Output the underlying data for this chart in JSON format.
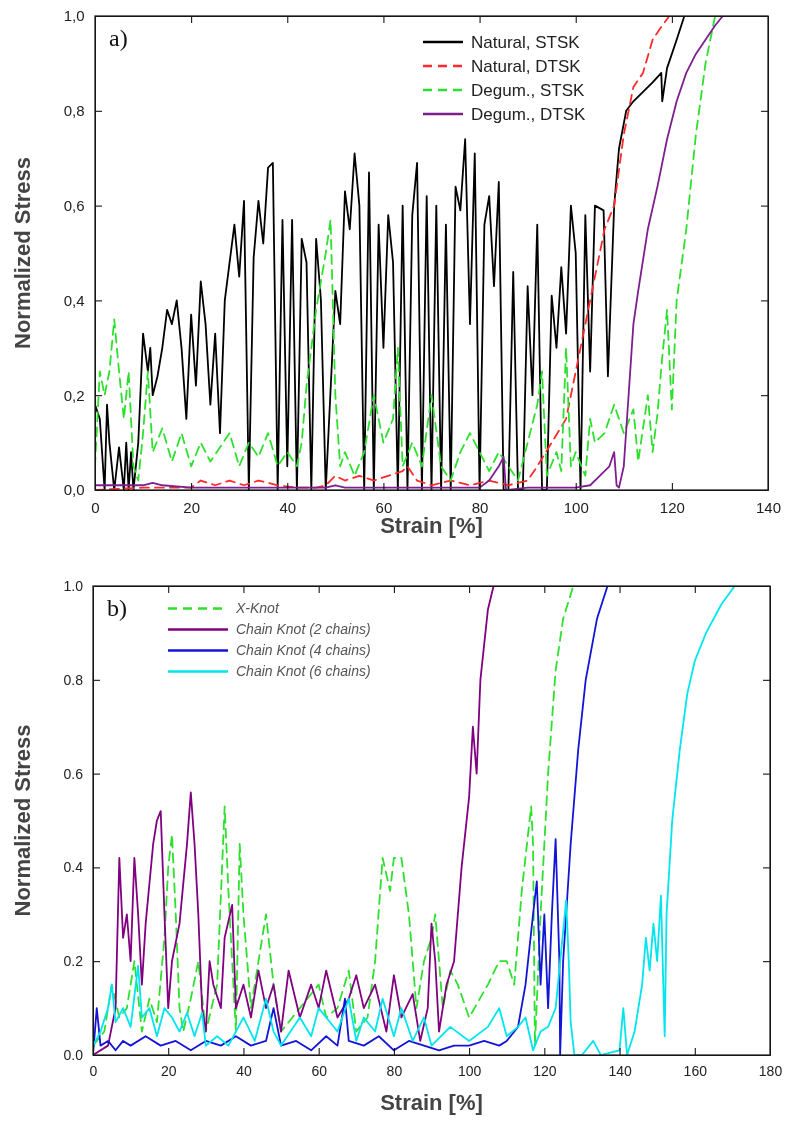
{
  "chart_data": [
    {
      "type": "line",
      "xlabel": "Strain [%]",
      "ylabel": "Normalized Stress",
      "annotations": [
        "a)"
      ],
      "xlim": [
        0,
        140
      ],
      "xticks": [
        0,
        20,
        40,
        60,
        80,
        100,
        120,
        140
      ],
      "ylim": [
        0,
        1
      ],
      "yticks": [
        {
          "value": 0,
          "label": "0,0"
        },
        {
          "value": 0.2,
          "label": "0,2"
        },
        {
          "value": 0.4,
          "label": "0,4"
        },
        {
          "value": 0.6,
          "label": "0,6"
        },
        {
          "value": 0.8,
          "label": "0,8"
        },
        {
          "value": 1,
          "label": "1,0"
        }
      ],
      "grid": false,
      "legend": "top right",
      "series": [
        {
          "name": "Natural, STSK",
          "color": "#000000",
          "line_style": "solid",
          "x": [
            0,
            1,
            2,
            2.5,
            3,
            4,
            5,
            6,
            6.5,
            7,
            7.5,
            8,
            9,
            10,
            11,
            11.5,
            12,
            13,
            14,
            15,
            16,
            17,
            18,
            19,
            20,
            21,
            22,
            23,
            24,
            25,
            26,
            27,
            28,
            29,
            30,
            31,
            32,
            33,
            34,
            35,
            36,
            37,
            38,
            39,
            40,
            41,
            42,
            43,
            44,
            45,
            46,
            47,
            48,
            50,
            51,
            52,
            53,
            54,
            55,
            56,
            57,
            58,
            59,
            60,
            61,
            62,
            63,
            64,
            65,
            66,
            67,
            68,
            69,
            70,
            71,
            72,
            73,
            74,
            75,
            76,
            77,
            78,
            79,
            80,
            81,
            82,
            83,
            84,
            85,
            86,
            87,
            88,
            89,
            90,
            91,
            92,
            93,
            94,
            95,
            96,
            97,
            98,
            99,
            100,
            101,
            102,
            103,
            104,
            105.8,
            106.7,
            108,
            109,
            110.5,
            112,
            114,
            116,
            117.8,
            118,
            119,
            121,
            122.6
          ],
          "values": [
            0.18,
            0.15,
            0,
            0.18,
            0.1,
            0,
            0.09,
            0,
            0.1,
            0,
            0.08,
            0,
            0.1,
            0.33,
            0.25,
            0.3,
            0.2,
            0.24,
            0.3,
            0.38,
            0.35,
            0.4,
            0.3,
            0.15,
            0.37,
            0.22,
            0.44,
            0.35,
            0.18,
            0.33,
            0.12,
            0.4,
            0.48,
            0.56,
            0.45,
            0.61,
            0,
            0.49,
            0.61,
            0.52,
            0.68,
            0.69,
            0,
            0.57,
            0.05,
            0.57,
            0,
            0.53,
            0.48,
            0,
            0.53,
            0.4,
            0,
            0.42,
            0.35,
            0.63,
            0.55,
            0.71,
            0.6,
            0,
            0.67,
            0,
            0.56,
            0.3,
            0.58,
            0.48,
            0,
            0.6,
            0,
            0.58,
            0.69,
            0,
            0.62,
            0,
            0.6,
            0,
            0.56,
            0,
            0.64,
            0.59,
            0.74,
            0.35,
            0.71,
            0,
            0.56,
            0.62,
            0.43,
            0.65,
            0,
            0,
            0.46,
            0,
            0,
            0.43,
            0.2,
            0.56,
            0,
            0,
            0.41,
            0.3,
            0.47,
            0.33,
            0.6,
            0.5,
            0,
            0.58,
            0.25,
            0.6,
            0.59,
            0.24,
            0.6,
            0.72,
            0.8,
            0.82,
            0.84,
            0.86,
            0.88,
            0.82,
            0.89,
            0.95,
            1
          ]
        },
        {
          "name": "Natural, DTSK",
          "color": "#ff2a2a",
          "line_style": "dashed",
          "x": [
            0,
            10,
            20,
            22,
            25,
            28,
            31,
            34,
            38,
            42,
            46,
            48,
            50,
            52,
            55,
            58,
            61,
            64,
            65,
            67,
            70,
            74,
            78,
            82,
            86,
            90,
            92,
            95,
            98,
            100,
            102,
            104,
            106,
            108,
            110,
            112,
            114,
            116,
            118,
            119.5
          ],
          "values": [
            0,
            0.005,
            0.005,
            0.02,
            0.01,
            0.02,
            0.01,
            0.02,
            0.01,
            0.005,
            0.005,
            0.01,
            0.03,
            0.02,
            0.03,
            0.02,
            0.03,
            0.04,
            0.05,
            0.02,
            0.01,
            0.02,
            0.01,
            0.02,
            0.01,
            0.02,
            0.05,
            0.1,
            0.15,
            0.25,
            0.35,
            0.45,
            0.55,
            0.6,
            0.75,
            0.85,
            0.88,
            0.95,
            0.98,
            1
          ]
        },
        {
          "name": "Degum., STSK",
          "color": "#2ee02e",
          "line_style": "dashed",
          "x": [
            0,
            1,
            2,
            3,
            4,
            5,
            6,
            7,
            8,
            9,
            10,
            11,
            12,
            14,
            16,
            18,
            20,
            22,
            24,
            26,
            28,
            30,
            32,
            34,
            36,
            38,
            40,
            42,
            43,
            44,
            46,
            48,
            49,
            50,
            51,
            52,
            54,
            56,
            58,
            60,
            62,
            63,
            64,
            66,
            68,
            70,
            72,
            74,
            76,
            78,
            80,
            82,
            84,
            86,
            88,
            90,
            92,
            93,
            94,
            96,
            97,
            98,
            99,
            100,
            102,
            103,
            104,
            106,
            108,
            110,
            112,
            113,
            114,
            115,
            116,
            117,
            118,
            119,
            120,
            121,
            123,
            125,
            127,
            129
          ],
          "values": [
            0.05,
            0.25,
            0.2,
            0.25,
            0.36,
            0.25,
            0.15,
            0.25,
            0.05,
            0.02,
            0.12,
            0.25,
            0.08,
            0.13,
            0.06,
            0.12,
            0.05,
            0.1,
            0.06,
            0.09,
            0.12,
            0.05,
            0.1,
            0.07,
            0.12,
            0.05,
            0.08,
            0.05,
            0.1,
            0.22,
            0.38,
            0.5,
            0.57,
            0.2,
            0.05,
            0.08,
            0.03,
            0.08,
            0.2,
            0.1,
            0.15,
            0.3,
            0.05,
            0.1,
            0.05,
            0.2,
            0.05,
            0.02,
            0.08,
            0.12,
            0.08,
            0.04,
            0.08,
            0.05,
            0.02,
            0.1,
            0.18,
            0.25,
            0.03,
            0.08,
            0.04,
            0.3,
            0.05,
            0.08,
            0.03,
            0.15,
            0.1,
            0.12,
            0.18,
            0.12,
            0.17,
            0.06,
            0.13,
            0.2,
            0.08,
            0.16,
            0.28,
            0.38,
            0.17,
            0.4,
            0.55,
            0.75,
            0.9,
            1
          ]
        },
        {
          "name": "Degum., DTSK",
          "color": "#7d1f8f",
          "line_style": "solid",
          "x": [
            0,
            10,
            12,
            14,
            20,
            30,
            40,
            48,
            50,
            52,
            60,
            70,
            80,
            82,
            84,
            85,
            85.5,
            90,
            100,
            103,
            105,
            107,
            108,
            108.5,
            109,
            110,
            111,
            112,
            113,
            115,
            117,
            119,
            121,
            123,
            125,
            127,
            129,
            130.6
          ],
          "values": [
            0.01,
            0.01,
            0.015,
            0.01,
            0.005,
            0.005,
            0.005,
            0.005,
            0.01,
            0.005,
            0.005,
            0.005,
            0.005,
            0.02,
            0.05,
            0.07,
            0,
            0.005,
            0.005,
            0.01,
            0.03,
            0.05,
            0.08,
            0.01,
            0.005,
            0.05,
            0.2,
            0.35,
            0.42,
            0.55,
            0.64,
            0.74,
            0.82,
            0.88,
            0.92,
            0.95,
            0.98,
            1
          ]
        }
      ]
    },
    {
      "type": "line",
      "xlabel": "Strain [%]",
      "ylabel": "Normalized Stress",
      "annotations": [
        "b)"
      ],
      "xlim": [
        0,
        180
      ],
      "xticks": [
        0,
        20,
        40,
        60,
        80,
        100,
        120,
        140,
        160,
        180
      ],
      "ylim": [
        0,
        1
      ],
      "yticks": [
        {
          "value": 0,
          "label": "0.0"
        },
        {
          "value": 0.2,
          "label": "0.2"
        },
        {
          "value": 0.4,
          "label": "0.4"
        },
        {
          "value": 0.6,
          "label": "0.6"
        },
        {
          "value": 0.8,
          "label": "0.8"
        },
        {
          "value": 1,
          "label": "1.0"
        }
      ],
      "grid": false,
      "legend": "top left",
      "series": [
        {
          "name": "X-Knot",
          "color": "#2ee02e",
          "line_style": "dashed",
          "x": [
            0,
            3,
            5,
            7,
            9,
            11,
            13,
            15,
            17,
            19,
            20,
            21,
            22,
            23,
            24,
            26,
            28,
            30,
            33,
            35,
            36,
            38,
            39,
            40,
            42,
            45,
            46,
            48,
            50,
            55,
            60,
            62,
            65,
            68,
            70,
            73,
            75,
            77,
            79,
            80,
            82,
            84,
            86,
            88,
            90,
            91,
            93,
            95,
            97,
            100,
            105,
            108,
            110,
            112,
            114,
            116.5,
            117,
            117.5,
            119,
            121,
            123,
            125,
            127.7
          ],
          "values": [
            0.02,
            0.05,
            0.15,
            0.08,
            0.1,
            0.2,
            0.05,
            0.12,
            0.07,
            0.25,
            0.4,
            0.47,
            0.3,
            0.1,
            0.05,
            0.12,
            0.2,
            0.05,
            0.15,
            0.53,
            0.35,
            0.05,
            0.45,
            0.3,
            0.1,
            0.25,
            0.3,
            0.15,
            0.05,
            0.1,
            0.15,
            0.08,
            0.1,
            0.18,
            0.05,
            0.08,
            0.2,
            0.42,
            0.35,
            0.42,
            0.42,
            0.3,
            0.1,
            0.2,
            0.25,
            0.3,
            0.1,
            0.18,
            0.15,
            0.08,
            0.15,
            0.2,
            0.2,
            0.15,
            0.35,
            0.53,
            0.45,
            0.02,
            0.3,
            0.6,
            0.82,
            0.93,
            1
          ]
        },
        {
          "name": "Chain Knot (2 chains)",
          "color": "#800080",
          "line_style": "solid",
          "x": [
            0,
            4,
            6,
            7,
            8,
            9,
            10,
            11,
            12,
            13,
            14,
            16,
            17,
            18,
            19,
            20,
            21,
            23,
            25,
            26,
            27,
            28,
            29,
            30,
            31,
            32,
            34,
            35,
            37,
            38,
            40,
            42,
            44,
            46,
            48,
            50,
            52,
            55,
            58,
            60,
            62,
            65,
            68,
            70,
            72,
            75,
            78,
            80,
            82,
            85,
            87,
            89,
            90,
            91,
            92,
            94,
            96,
            98,
            100,
            101,
            102,
            103,
            105,
            106.5
          ],
          "values": [
            0,
            0.02,
            0.1,
            0.42,
            0.25,
            0.3,
            0.2,
            0.42,
            0.3,
            0.15,
            0.28,
            0.45,
            0.5,
            0.52,
            0.3,
            0.1,
            0.2,
            0.28,
            0.45,
            0.56,
            0.45,
            0.3,
            0.1,
            0.05,
            0.2,
            0.15,
            0.1,
            0.25,
            0.32,
            0.1,
            0.15,
            0.08,
            0.18,
            0.1,
            0.15,
            0.05,
            0.18,
            0.08,
            0.15,
            0.1,
            0.18,
            0.08,
            0.12,
            0.17,
            0.1,
            0.15,
            0.05,
            0.17,
            0.08,
            0.13,
            0.03,
            0.1,
            0.28,
            0.2,
            0.05,
            0.15,
            0.2,
            0.4,
            0.55,
            0.7,
            0.6,
            0.8,
            0.95,
            1
          ]
        },
        {
          "name": "Chain Knot (4 chains)",
          "color": "#1414d8",
          "line_style": "solid",
          "x": [
            0,
            1,
            2,
            4,
            6,
            8,
            10,
            14,
            18,
            22,
            26,
            30,
            34,
            38,
            42,
            46,
            48,
            50,
            54,
            58,
            62,
            65,
            67,
            68,
            72,
            76,
            80,
            84,
            88,
            92,
            96,
            100,
            104,
            108,
            110,
            113,
            115,
            117,
            118,
            119,
            120,
            121,
            122,
            123,
            124,
            124.2,
            125,
            127,
            129,
            131,
            134,
            136.8
          ],
          "values": [
            0,
            0.1,
            0.02,
            0.03,
            0.01,
            0.03,
            0.02,
            0.04,
            0.02,
            0.03,
            0.01,
            0.03,
            0.02,
            0.04,
            0.02,
            0.03,
            0.1,
            0.02,
            0.03,
            0.01,
            0.04,
            0.02,
            0.12,
            0.03,
            0.02,
            0.04,
            0.01,
            0.03,
            0.02,
            0.01,
            0.02,
            0.02,
            0.03,
            0.02,
            0.03,
            0.06,
            0.15,
            0.3,
            0.37,
            0.15,
            0.3,
            0.1,
            0.3,
            0.46,
            0.2,
            0,
            0.2,
            0.45,
            0.65,
            0.8,
            0.93,
            1
          ]
        },
        {
          "name": "Chain Knot (6 chains)",
          "color": "#00e5ee",
          "line_style": "solid",
          "x": [
            0,
            2,
            4,
            5,
            6,
            8,
            10,
            12,
            13,
            15,
            17,
            19,
            21,
            23,
            25,
            27,
            29,
            30,
            33,
            36,
            40,
            43,
            46,
            48,
            50,
            55,
            58,
            60,
            65,
            68,
            70,
            72,
            75,
            77,
            80,
            82,
            85,
            88,
            90,
            95,
            100,
            105,
            108,
            110,
            113,
            115,
            117,
            119,
            121,
            123,
            125.8,
            126.5,
            127,
            128,
            130,
            133,
            135,
            140,
            141,
            142,
            144,
            146,
            147,
            148,
            149,
            150,
            151,
            152,
            152.5,
            154,
            156,
            158,
            160,
            163,
            167,
            170.6
          ],
          "values": [
            0.02,
            0.05,
            0.1,
            0.15,
            0.07,
            0.1,
            0.06,
            0.19,
            0.08,
            0.1,
            0.04,
            0.1,
            0.08,
            0.05,
            0.09,
            0.04,
            0.09,
            0.02,
            0.04,
            0.02,
            0.08,
            0.03,
            0.12,
            0.05,
            0.02,
            0.08,
            0.04,
            0.1,
            0.05,
            0.12,
            0.03,
            0.08,
            0.05,
            0.12,
            0.04,
            0.1,
            0.03,
            0.08,
            0.02,
            0.06,
            0.03,
            0.06,
            0.1,
            0.04,
            0.06,
            0.08,
            0.01,
            0.05,
            0.06,
            0.1,
            0.33,
            0.2,
            0.07,
            0,
            0,
            0.03,
            0,
            0.01,
            0.1,
            0,
            0.05,
            0.15,
            0.25,
            0.18,
            0.28,
            0.2,
            0.34,
            0.04,
            0.3,
            0.5,
            0.65,
            0.77,
            0.84,
            0.9,
            0.96,
            1
          ]
        }
      ]
    }
  ]
}
